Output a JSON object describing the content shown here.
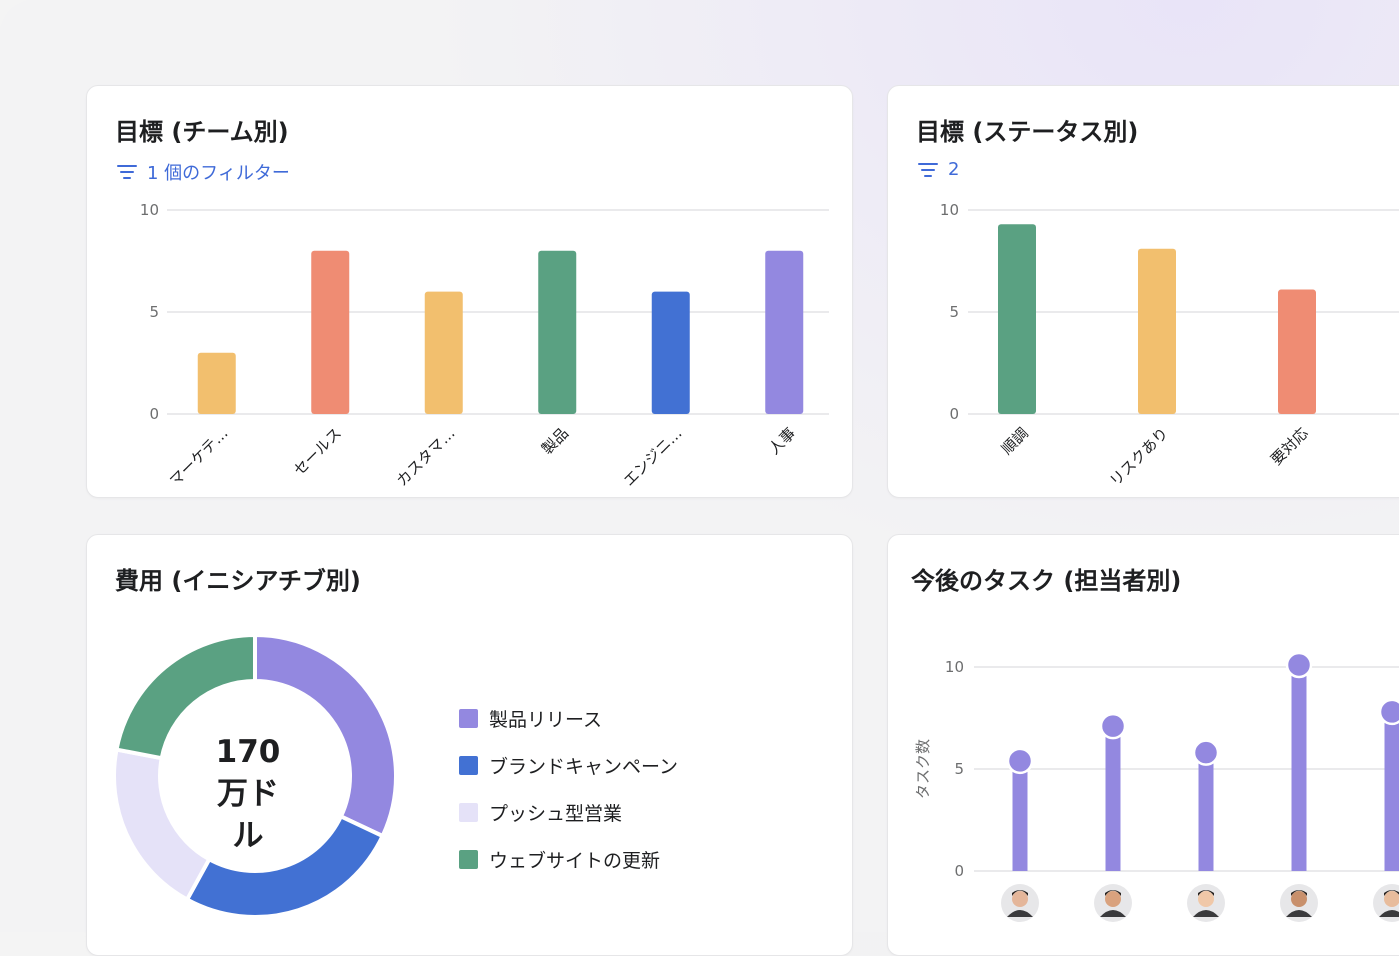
{
  "cards": {
    "team": {
      "title": "目標 (チーム別)",
      "filter_label": "1 個のフィルター"
    },
    "status": {
      "title": "目標 (ステータス別)",
      "filter_label": "2"
    },
    "cost": {
      "title": "費用 (イニシアチブ別)",
      "center_line1": "170",
      "center_line2": "万ドル"
    },
    "tasks": {
      "title": "今後のタスク (担当者別)"
    }
  },
  "chart_data": [
    {
      "type": "bar",
      "title": "目標 (チーム別)",
      "categories": [
        "マーケテ…",
        "セールス",
        "カスタマ…",
        "製品",
        "エンジニ…",
        "人事"
      ],
      "values": [
        3,
        8,
        6,
        8,
        6,
        8
      ],
      "colors": [
        "#f2bf6e",
        "#ef8c73",
        "#f2bf6e",
        "#5aa182",
        "#4271d3",
        "#9388e0"
      ],
      "yticks": [
        0,
        5,
        10
      ],
      "ylim": [
        0,
        10
      ],
      "grid": true
    },
    {
      "type": "bar",
      "title": "目標 (ステータス別)",
      "categories": [
        "順調",
        "リスクあり",
        "要対応"
      ],
      "values": [
        9.3,
        8.1,
        6.1
      ],
      "colors": [
        "#5aa182",
        "#f2bf6e",
        "#ef8c73"
      ],
      "yticks": [
        0,
        5,
        10
      ],
      "ylim": [
        0,
        10
      ],
      "grid": true
    },
    {
      "type": "pie",
      "title": "費用 (イニシアチブ別)",
      "categories": [
        "製品リリース",
        "ブランドキャンペーン",
        "プッシュ型営業",
        "ウェブサイトの更新"
      ],
      "values": [
        32,
        26,
        20,
        22
      ],
      "colors": [
        "#9388e0",
        "#4271d3",
        "#e5e2f8",
        "#5aa182"
      ],
      "center_label": "170 万ドル"
    },
    {
      "type": "bar",
      "title": "今後のタスク (担当者別)",
      "ylabel": "タスク数",
      "categories": [
        "担当者1",
        "担当者2",
        "担当者3",
        "担当者4",
        "担当者5"
      ],
      "values": [
        5.4,
        7.1,
        5.8,
        10.1,
        7.8
      ],
      "color": "#9388e0",
      "yticks": [
        0,
        5,
        10
      ],
      "ylim": [
        0,
        10
      ],
      "grid": true
    }
  ]
}
